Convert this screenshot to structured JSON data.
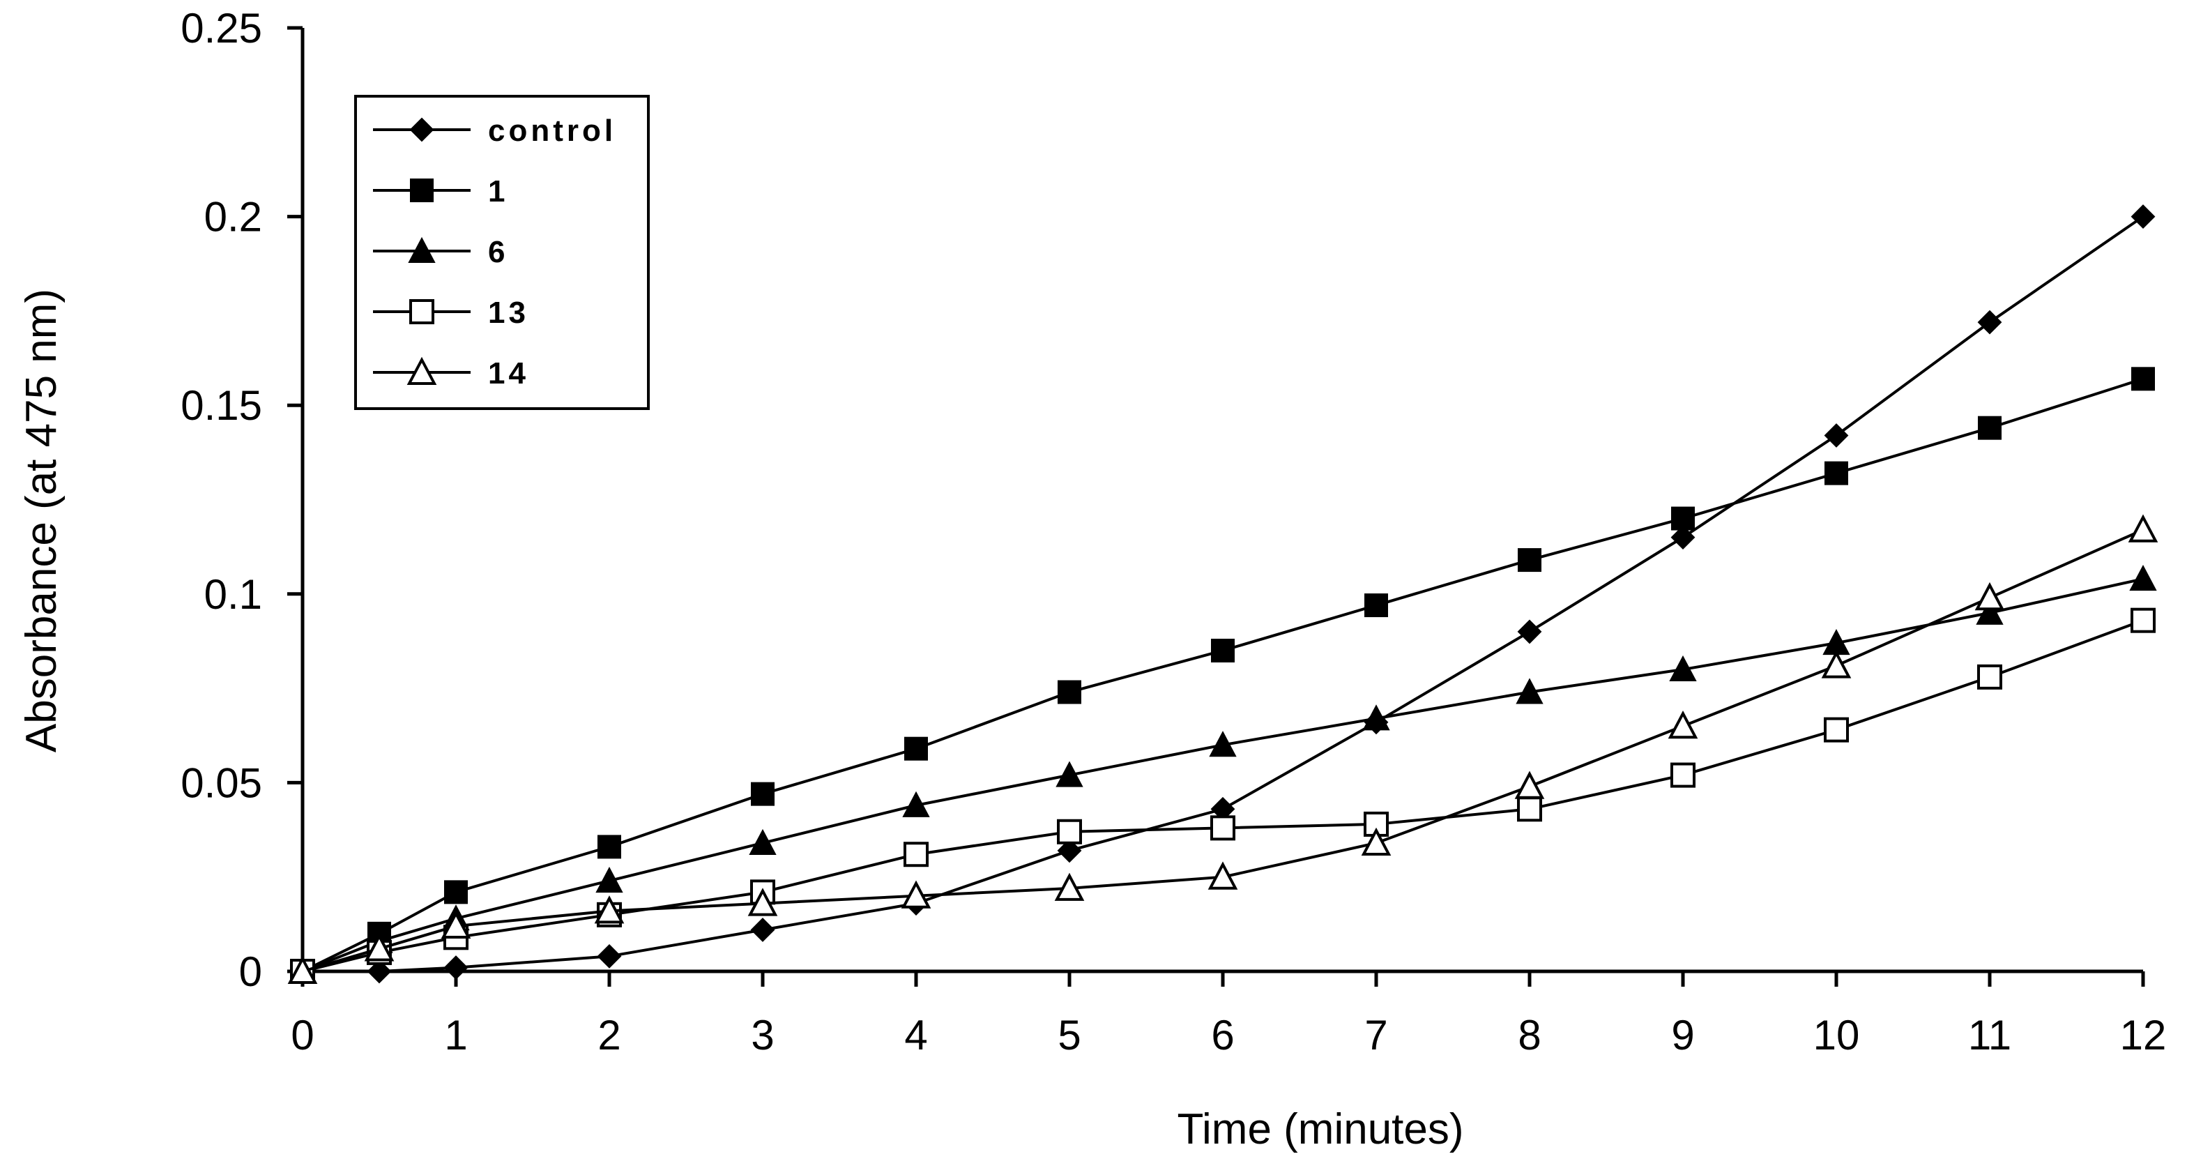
{
  "chart_data": {
    "type": "line",
    "title": "",
    "xlabel": "Time (minutes)",
    "ylabel": "Absorbance (at 475 nm)",
    "xlim": [
      0,
      12
    ],
    "ylim": [
      0,
      0.25
    ],
    "xticks": [
      0,
      1,
      2,
      3,
      4,
      5,
      6,
      7,
      8,
      9,
      10,
      11,
      12
    ],
    "yticks": [
      0,
      0.05,
      0.1,
      0.15,
      0.2,
      0.25
    ],
    "xtick_labels": [
      "0",
      "1",
      "2",
      "3",
      "4",
      "5",
      "6",
      "7",
      "8",
      "9",
      "10",
      "11",
      "12"
    ],
    "ytick_labels": [
      "0",
      "0.05",
      "0.1",
      "0.15",
      "0.2",
      "0.25"
    ],
    "grid": false,
    "legend_position": "top-left",
    "series": [
      {
        "name": "control",
        "marker": "diamond-filled",
        "x": [
          0,
          0.5,
          1,
          2,
          3,
          4,
          5,
          6,
          7,
          8,
          9,
          10,
          11,
          12
        ],
        "y": [
          0,
          0,
          0.001,
          0.004,
          0.011,
          0.018,
          0.032,
          0.043,
          0.066,
          0.09,
          0.115,
          0.142,
          0.172,
          0.2
        ]
      },
      {
        "name": "1",
        "marker": "square-filled",
        "x": [
          0,
          0.5,
          1,
          2,
          3,
          4,
          5,
          6,
          7,
          8,
          9,
          10,
          11,
          12
        ],
        "y": [
          0,
          0.01,
          0.021,
          0.033,
          0.047,
          0.059,
          0.074,
          0.085,
          0.097,
          0.109,
          0.12,
          0.132,
          0.144,
          0.157
        ]
      },
      {
        "name": "6",
        "marker": "triangle-filled",
        "x": [
          0,
          0.5,
          1,
          2,
          3,
          4,
          5,
          6,
          7,
          8,
          9,
          10,
          11,
          12
        ],
        "y": [
          0,
          0.008,
          0.014,
          0.024,
          0.034,
          0.044,
          0.052,
          0.06,
          0.067,
          0.074,
          0.08,
          0.087,
          0.095,
          0.104
        ]
      },
      {
        "name": "13",
        "marker": "square-open",
        "x": [
          0,
          0.5,
          1,
          2,
          3,
          4,
          5,
          6,
          7,
          8,
          9,
          10,
          11,
          12
        ],
        "y": [
          0,
          0.005,
          0.009,
          0.015,
          0.021,
          0.031,
          0.037,
          0.038,
          0.039,
          0.043,
          0.052,
          0.064,
          0.078,
          0.093
        ]
      },
      {
        "name": "14",
        "marker": "triangle-open",
        "x": [
          0,
          0.5,
          1,
          2,
          3,
          4,
          5,
          6,
          7,
          8,
          9,
          10,
          11,
          12
        ],
        "y": [
          0,
          0.006,
          0.012,
          0.016,
          0.018,
          0.02,
          0.022,
          0.025,
          0.034,
          0.049,
          0.065,
          0.081,
          0.099,
          0.117
        ]
      }
    ]
  }
}
